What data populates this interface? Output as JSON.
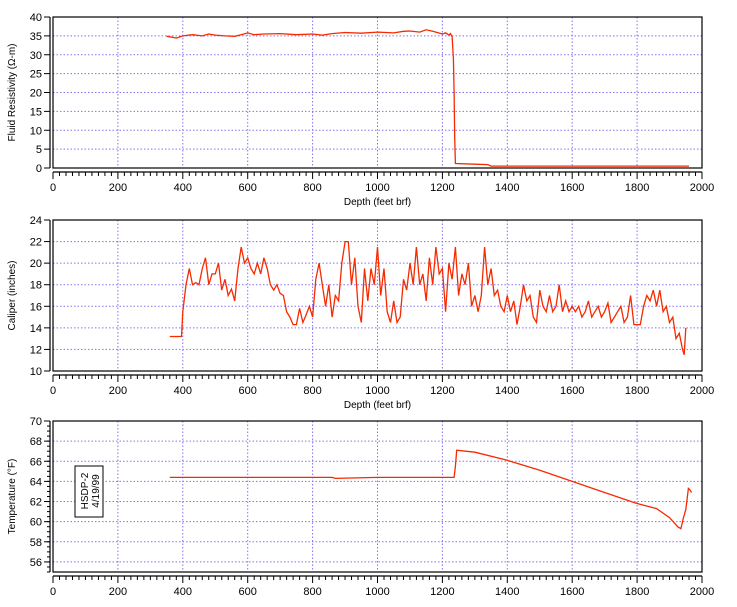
{
  "chart_data": [
    {
      "type": "line",
      "title": "",
      "xlabel": "Depth (feet brf)",
      "ylabel": "Fluid Resistivity (Ω-m)",
      "xlim": [
        0,
        2000
      ],
      "ylim": [
        0,
        40
      ],
      "xticks": [
        0,
        200,
        400,
        600,
        800,
        1000,
        1200,
        1400,
        1600,
        1800,
        2000
      ],
      "yticks": [
        0,
        5,
        10,
        15,
        20,
        25,
        30,
        35,
        40
      ],
      "grid": true,
      "series": [
        {
          "name": "Fluid Resistivity",
          "color": "#f62a00",
          "x": [
            350,
            370,
            380,
            400,
            430,
            460,
            480,
            500,
            530,
            560,
            580,
            600,
            620,
            650,
            700,
            750,
            800,
            830,
            860,
            900,
            950,
            1000,
            1050,
            1080,
            1100,
            1130,
            1150,
            1170,
            1200,
            1210,
            1220,
            1225,
            1230,
            1234,
            1236,
            1238,
            1240,
            1300,
            1340,
            1350,
            1500,
            1700,
            1960
          ],
          "y": [
            34.9,
            34.6,
            34.4,
            35.0,
            35.3,
            35.0,
            35.5,
            35.2,
            35.0,
            34.9,
            35.3,
            35.8,
            35.3,
            35.5,
            35.6,
            35.3,
            35.5,
            35.2,
            35.6,
            35.9,
            35.7,
            36.0,
            35.8,
            36.2,
            36.3,
            36.0,
            36.6,
            36.2,
            35.5,
            35.8,
            35.2,
            35.6,
            34.8,
            29,
            20,
            8,
            1.2,
            1.0,
            0.9,
            0.5,
            0.5,
            0.5,
            0.5
          ]
        }
      ]
    },
    {
      "type": "line",
      "title": "",
      "xlabel": "Depth (feet brf)",
      "ylabel": "Caliper (inches)",
      "xlim": [
        0,
        2000
      ],
      "ylim": [
        10,
        24
      ],
      "xticks": [
        0,
        200,
        400,
        600,
        800,
        1000,
        1200,
        1400,
        1600,
        1800,
        2000
      ],
      "yticks": [
        10,
        12,
        14,
        16,
        18,
        20,
        22,
        24
      ],
      "grid": true,
      "series": [
        {
          "name": "Caliper",
          "color": "#f62a00",
          "x": [
            360,
            370,
            380,
            390,
            396,
            400,
            410,
            420,
            430,
            440,
            450,
            460,
            470,
            480,
            490,
            500,
            510,
            520,
            530,
            540,
            550,
            560,
            570,
            580,
            590,
            600,
            610,
            620,
            630,
            640,
            650,
            660,
            670,
            680,
            690,
            700,
            710,
            720,
            730,
            740,
            750,
            760,
            770,
            780,
            790,
            800,
            810,
            820,
            830,
            840,
            850,
            860,
            870,
            880,
            890,
            900,
            910,
            920,
            930,
            940,
            950,
            960,
            970,
            980,
            990,
            1000,
            1010,
            1020,
            1030,
            1040,
            1050,
            1060,
            1070,
            1080,
            1090,
            1100,
            1110,
            1120,
            1130,
            1140,
            1150,
            1160,
            1170,
            1180,
            1190,
            1200,
            1210,
            1220,
            1230,
            1240,
            1250,
            1260,
            1270,
            1280,
            1290,
            1300,
            1310,
            1320,
            1330,
            1340,
            1350,
            1360,
            1370,
            1380,
            1390,
            1400,
            1410,
            1420,
            1430,
            1440,
            1450,
            1460,
            1470,
            1480,
            1490,
            1500,
            1510,
            1520,
            1530,
            1540,
            1550,
            1560,
            1570,
            1580,
            1590,
            1600,
            1610,
            1620,
            1630,
            1640,
            1650,
            1660,
            1670,
            1680,
            1690,
            1700,
            1710,
            1720,
            1730,
            1740,
            1750,
            1760,
            1770,
            1780,
            1790,
            1800,
            1810,
            1820,
            1830,
            1840,
            1850,
            1860,
            1870,
            1880,
            1890,
            1900,
            1910,
            1920,
            1930,
            1940,
            1945,
            1950
          ],
          "y": [
            13.2,
            13.2,
            13.2,
            13.2,
            13.2,
            15.5,
            18,
            19.5,
            18,
            18.2,
            18,
            19.5,
            20.5,
            18,
            19,
            19,
            20,
            17.5,
            18.5,
            17,
            17.6,
            16.5,
            19.5,
            21.5,
            20,
            20.5,
            19.5,
            19,
            20,
            19,
            20.5,
            19.5,
            18,
            17.5,
            18,
            17.2,
            17,
            15.5,
            15,
            14.3,
            14.3,
            15.8,
            14.5,
            15.2,
            16,
            15,
            18.5,
            20,
            18,
            16,
            18,
            15,
            17,
            16.5,
            20,
            22,
            22,
            18,
            20.5,
            16,
            14.5,
            19.5,
            16.5,
            19.5,
            18,
            21.5,
            17,
            19.5,
            15.5,
            14.5,
            16.5,
            14.5,
            15,
            18.5,
            17.5,
            20,
            18,
            21.5,
            18,
            19,
            16.5,
            20.5,
            18,
            21.5,
            19,
            19.5,
            15.5,
            20,
            18.5,
            21.5,
            17,
            19,
            18,
            20,
            16,
            17,
            15.5,
            17,
            21.5,
            18,
            19.5,
            17,
            17.5,
            16,
            15.5,
            17,
            15.5,
            16.5,
            14.3,
            16,
            18,
            16.5,
            17,
            15,
            14.5,
            17.5,
            16,
            15.5,
            17,
            15.5,
            16,
            18,
            15.5,
            16.5,
            15.5,
            16,
            15.5,
            16,
            15,
            15.5,
            16.5,
            15,
            15.5,
            16,
            15,
            15.5,
            16.3,
            14.5,
            15,
            15.5,
            16,
            14.5,
            15,
            17,
            14.3,
            14.3,
            14.3,
            16,
            17,
            16.5,
            17.5,
            16,
            17.5,
            15.5,
            16,
            14.5,
            15,
            13,
            13.5,
            12,
            11.5,
            14
          ]
        }
      ]
    },
    {
      "type": "line",
      "title": "",
      "xlabel": "",
      "ylabel": "Temperature (°F)",
      "xlim": [
        0,
        2000
      ],
      "ylim": [
        55,
        70
      ],
      "xticks": [
        0,
        200,
        400,
        600,
        800,
        1000,
        1200,
        1400,
        1600,
        1800,
        2000
      ],
      "yticks": [
        56,
        58,
        60,
        62,
        64,
        66,
        68,
        70
      ],
      "grid": true,
      "annotation": [
        "HSDP-2",
        "4/19/99"
      ],
      "series": [
        {
          "name": "Temperature",
          "color": "#f62a00",
          "x": [
            360,
            860,
            870,
            1000,
            1236,
            1240,
            1244,
            1300,
            1400,
            1500,
            1600,
            1700,
            1800,
            1860,
            1900,
            1925,
            1935,
            1942,
            1950,
            1958,
            1962,
            1968
          ],
          "y": [
            64.4,
            64.4,
            64.3,
            64.4,
            64.4,
            65.5,
            67.1,
            66.9,
            66.1,
            65.1,
            64.0,
            62.9,
            61.8,
            61.3,
            60.4,
            59.5,
            59.3,
            60.3,
            61.2,
            63.3,
            63.2,
            62.9
          ]
        }
      ]
    }
  ]
}
